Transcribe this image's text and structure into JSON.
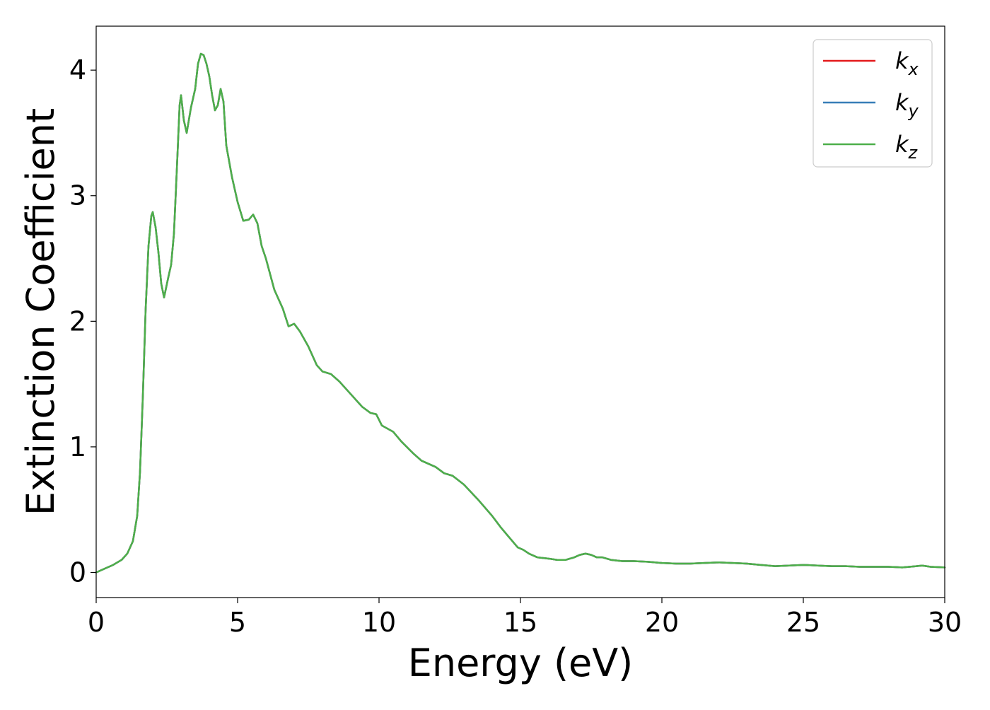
{
  "chart_data": {
    "type": "line",
    "title": "",
    "xlabel": "Energy (eV)",
    "ylabel": "Extinction Coefficient",
    "xlim": [
      0,
      30
    ],
    "ylim": [
      -0.2,
      4.35
    ],
    "xticks": [
      0,
      5,
      10,
      15,
      20,
      25,
      30
    ],
    "yticks": [
      0,
      1,
      2,
      3,
      4
    ],
    "grid": false,
    "legend_position": "top-right",
    "x": [
      0,
      0.3,
      0.6,
      0.9,
      1.1,
      1.3,
      1.45,
      1.55,
      1.65,
      1.75,
      1.85,
      1.95,
      2.0,
      2.1,
      2.2,
      2.3,
      2.4,
      2.55,
      2.65,
      2.75,
      2.85,
      2.95,
      3.0,
      3.1,
      3.2,
      3.35,
      3.5,
      3.6,
      3.7,
      3.8,
      3.9,
      4.0,
      4.1,
      4.2,
      4.3,
      4.4,
      4.5,
      4.6,
      4.8,
      5.0,
      5.2,
      5.4,
      5.55,
      5.7,
      5.85,
      6.0,
      6.3,
      6.6,
      6.8,
      7.0,
      7.2,
      7.5,
      7.8,
      8.0,
      8.3,
      8.6,
      9.0,
      9.4,
      9.7,
      9.9,
      10.1,
      10.5,
      10.8,
      11.2,
      11.5,
      12.0,
      12.3,
      12.6,
      13.0,
      13.5,
      14.0,
      14.3,
      14.6,
      14.9,
      15.1,
      15.3,
      15.6,
      16.0,
      16.3,
      16.6,
      16.9,
      17.1,
      17.3,
      17.5,
      17.7,
      17.9,
      18.2,
      18.6,
      19.0,
      19.5,
      20.0,
      20.5,
      21.0,
      21.5,
      22.0,
      22.5,
      23.0,
      23.5,
      24.0,
      24.5,
      25.0,
      25.5,
      26.0,
      26.5,
      27.0,
      27.5,
      28.0,
      28.5,
      29.0,
      29.2,
      29.5,
      30.0
    ],
    "series": [
      {
        "name": "k_x",
        "color": "#e41a1c",
        "values": [
          0.0,
          0.03,
          0.06,
          0.1,
          0.15,
          0.25,
          0.45,
          0.8,
          1.4,
          2.1,
          2.6,
          2.84,
          2.87,
          2.75,
          2.55,
          2.3,
          2.19,
          2.35,
          2.45,
          2.7,
          3.2,
          3.72,
          3.8,
          3.6,
          3.5,
          3.7,
          3.85,
          4.05,
          4.13,
          4.12,
          4.05,
          3.95,
          3.8,
          3.68,
          3.72,
          3.85,
          3.75,
          3.4,
          3.15,
          2.95,
          2.8,
          2.81,
          2.85,
          2.78,
          2.6,
          2.5,
          2.25,
          2.1,
          1.96,
          1.98,
          1.92,
          1.8,
          1.65,
          1.6,
          1.58,
          1.52,
          1.42,
          1.32,
          1.27,
          1.26,
          1.17,
          1.12,
          1.04,
          0.95,
          0.89,
          0.84,
          0.79,
          0.77,
          0.7,
          0.58,
          0.45,
          0.36,
          0.28,
          0.2,
          0.18,
          0.15,
          0.12,
          0.11,
          0.1,
          0.1,
          0.12,
          0.14,
          0.15,
          0.14,
          0.12,
          0.12,
          0.1,
          0.09,
          0.09,
          0.085,
          0.075,
          0.07,
          0.07,
          0.075,
          0.08,
          0.075,
          0.07,
          0.06,
          0.05,
          0.055,
          0.06,
          0.055,
          0.05,
          0.05,
          0.045,
          0.045,
          0.045,
          0.04,
          0.05,
          0.055,
          0.045,
          0.04
        ]
      },
      {
        "name": "k_y",
        "color": "#377eb8",
        "values": [
          0.0,
          0.03,
          0.06,
          0.1,
          0.15,
          0.25,
          0.45,
          0.8,
          1.4,
          2.1,
          2.6,
          2.84,
          2.87,
          2.75,
          2.55,
          2.3,
          2.19,
          2.35,
          2.45,
          2.7,
          3.2,
          3.72,
          3.8,
          3.6,
          3.5,
          3.7,
          3.85,
          4.05,
          4.13,
          4.12,
          4.05,
          3.95,
          3.8,
          3.68,
          3.72,
          3.85,
          3.75,
          3.4,
          3.15,
          2.95,
          2.8,
          2.81,
          2.85,
          2.78,
          2.6,
          2.5,
          2.25,
          2.1,
          1.96,
          1.98,
          1.92,
          1.8,
          1.65,
          1.6,
          1.58,
          1.52,
          1.42,
          1.32,
          1.27,
          1.26,
          1.17,
          1.12,
          1.04,
          0.95,
          0.89,
          0.84,
          0.79,
          0.77,
          0.7,
          0.58,
          0.45,
          0.36,
          0.28,
          0.2,
          0.18,
          0.15,
          0.12,
          0.11,
          0.1,
          0.1,
          0.12,
          0.14,
          0.15,
          0.14,
          0.12,
          0.12,
          0.1,
          0.09,
          0.09,
          0.085,
          0.075,
          0.07,
          0.07,
          0.075,
          0.08,
          0.075,
          0.07,
          0.06,
          0.05,
          0.055,
          0.06,
          0.055,
          0.05,
          0.05,
          0.045,
          0.045,
          0.045,
          0.04,
          0.05,
          0.055,
          0.045,
          0.04
        ]
      },
      {
        "name": "k_z",
        "color": "#4daf4a",
        "values": [
          0.0,
          0.03,
          0.06,
          0.1,
          0.15,
          0.25,
          0.45,
          0.8,
          1.4,
          2.1,
          2.6,
          2.84,
          2.87,
          2.75,
          2.55,
          2.3,
          2.19,
          2.35,
          2.45,
          2.7,
          3.2,
          3.72,
          3.8,
          3.6,
          3.5,
          3.7,
          3.85,
          4.05,
          4.13,
          4.12,
          4.05,
          3.95,
          3.8,
          3.68,
          3.72,
          3.85,
          3.75,
          3.4,
          3.15,
          2.95,
          2.8,
          2.81,
          2.85,
          2.78,
          2.6,
          2.5,
          2.25,
          2.1,
          1.96,
          1.98,
          1.92,
          1.8,
          1.65,
          1.6,
          1.58,
          1.52,
          1.42,
          1.32,
          1.27,
          1.26,
          1.17,
          1.12,
          1.04,
          0.95,
          0.89,
          0.84,
          0.79,
          0.77,
          0.7,
          0.58,
          0.45,
          0.36,
          0.28,
          0.2,
          0.18,
          0.15,
          0.12,
          0.11,
          0.1,
          0.1,
          0.12,
          0.14,
          0.15,
          0.14,
          0.12,
          0.12,
          0.1,
          0.09,
          0.09,
          0.085,
          0.075,
          0.07,
          0.07,
          0.075,
          0.08,
          0.075,
          0.07,
          0.06,
          0.05,
          0.055,
          0.06,
          0.055,
          0.05,
          0.05,
          0.045,
          0.045,
          0.045,
          0.04,
          0.05,
          0.055,
          0.045,
          0.04
        ]
      }
    ],
    "legend": [
      {
        "base": "k",
        "sub": "x",
        "color": "#e41a1c"
      },
      {
        "base": "k",
        "sub": "y",
        "color": "#377eb8"
      },
      {
        "base": "k",
        "sub": "z",
        "color": "#4daf4a"
      }
    ]
  }
}
